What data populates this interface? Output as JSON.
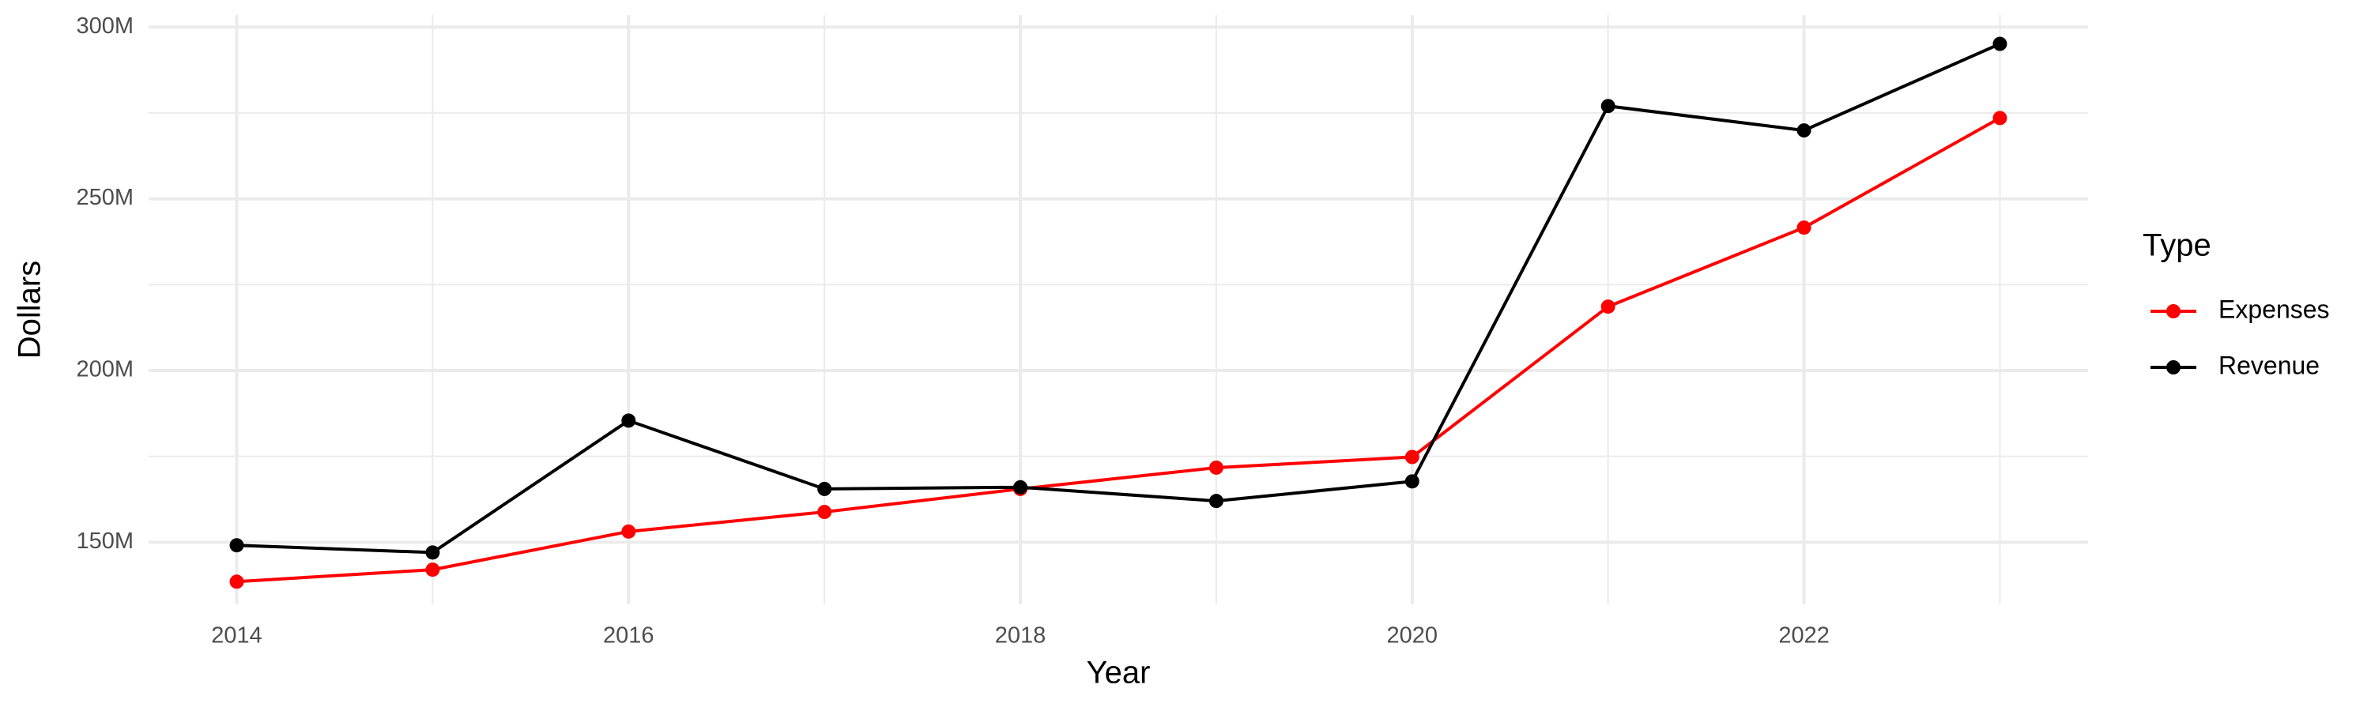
{
  "chart_data": {
    "type": "line",
    "x_label": "Year",
    "y_label": "Dollars",
    "legend_title": "Type",
    "x": [
      2014,
      2015,
      2016,
      2017,
      2018,
      2019,
      2020,
      2021,
      2022,
      2023
    ],
    "series": [
      {
        "name": "Expenses",
        "color": "#ff0000",
        "values": [
          138500000,
          142000000,
          153100000,
          158800000,
          165500000,
          171700000,
          174800000,
          218600000,
          241600000,
          273500000
        ]
      },
      {
        "name": "Revenue",
        "color": "#000000",
        "values": [
          149100000,
          147000000,
          185400000,
          165500000,
          166000000,
          162000000,
          167700000,
          277000000,
          269900000,
          295100000
        ]
      }
    ],
    "xlim": [
      2013.55,
      2023.45
    ],
    "xticks": [
      2014,
      2016,
      2018,
      2020,
      2022
    ],
    "ylim": [
      131900000,
      303500000
    ],
    "yticks": [
      {
        "value": 150000000,
        "label": "150M"
      },
      {
        "value": 200000000,
        "label": "200M"
      },
      {
        "value": 250000000,
        "label": "250M"
      },
      {
        "value": 300000000,
        "label": "300M"
      }
    ],
    "grid": true,
    "minor_grid": true,
    "legend_position": "right"
  }
}
